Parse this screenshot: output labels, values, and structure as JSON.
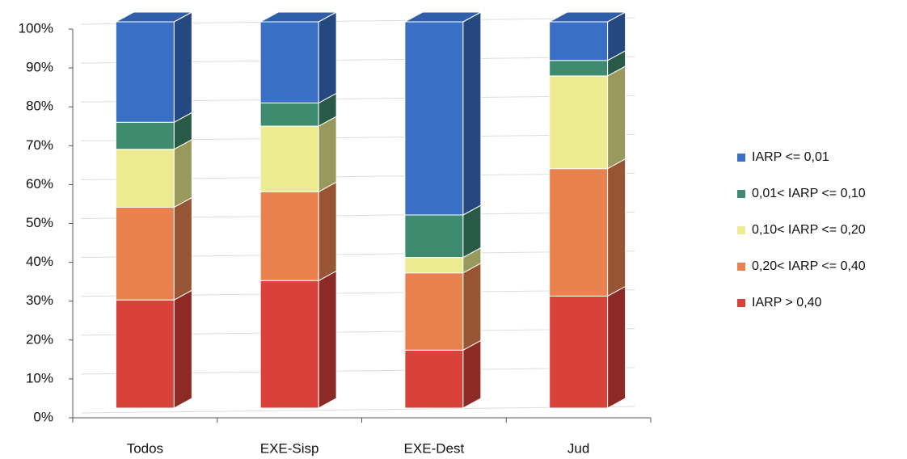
{
  "chart_data": {
    "type": "bar",
    "stacked": true,
    "categories": [
      "Todos",
      "EXE-Sisp",
      "EXE-Dest",
      "Jud"
    ],
    "series": [
      {
        "name": "IARP > 0,40",
        "color": "#d9413b",
        "values": [
          28,
          33,
          15,
          29
        ]
      },
      {
        "name": "0,20< IARP <= 0,40",
        "color": "#e9824f",
        "values": [
          24,
          23,
          20,
          33
        ]
      },
      {
        "name": "0,10< IARP <= 0,20",
        "color": "#eceb90",
        "values": [
          15,
          17,
          4,
          24
        ]
      },
      {
        "name": "0,01< IARP <= 0,10",
        "color": "#3f8b6f",
        "values": [
          7,
          6,
          11,
          4
        ]
      },
      {
        "name": "IARP <= 0,01",
        "color": "#3a6fc6",
        "values": [
          26,
          21,
          50,
          10
        ]
      }
    ],
    "ylim": [
      0,
      100
    ],
    "yticks": [
      {
        "value": 0,
        "label": "0%"
      },
      {
        "value": 10,
        "label": "10%"
      },
      {
        "value": 20,
        "label": "20%"
      },
      {
        "value": 30,
        "label": "30%"
      },
      {
        "value": 40,
        "label": "40%"
      },
      {
        "value": 50,
        "label": "50%"
      },
      {
        "value": 60,
        "label": "60%"
      },
      {
        "value": 70,
        "label": "70%"
      },
      {
        "value": 80,
        "label": "80%"
      },
      {
        "value": 90,
        "label": "90%"
      },
      {
        "value": 100,
        "label": "100%"
      }
    ],
    "grid": true
  }
}
